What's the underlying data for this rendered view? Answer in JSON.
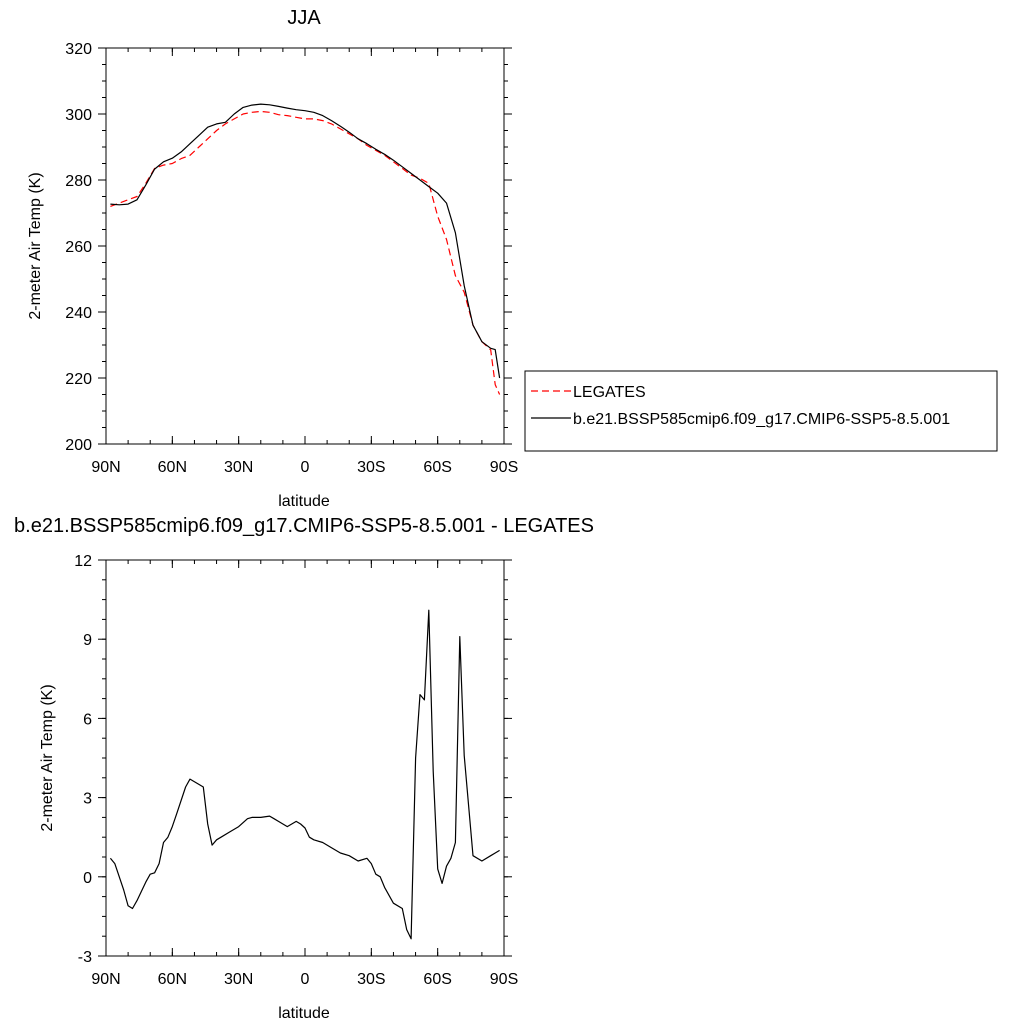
{
  "chart_data": [
    {
      "type": "line",
      "title": "JJA",
      "xlabel": "latitude",
      "ylabel": "2-meter Air Temp (K)",
      "xlim": [
        90,
        -90
      ],
      "ylim": [
        200,
        320
      ],
      "xticks": [
        90,
        60,
        30,
        0,
        -30,
        -60,
        -90
      ],
      "xtick_labels": [
        "90N",
        "60N",
        "30N",
        "0",
        "30S",
        "60S",
        "90S"
      ],
      "yticks": [
        200,
        220,
        240,
        260,
        280,
        300,
        320
      ],
      "ytick_labels": [
        "200",
        "220",
        "240",
        "260",
        "280",
        "300",
        "320"
      ],
      "legend_placement": "right",
      "series": [
        {
          "name": "LEGATES",
          "color": "#ff0000",
          "dash": "dashed",
          "x": [
            88,
            84,
            80,
            76,
            72,
            68,
            64,
            60,
            56,
            52,
            48,
            44,
            40,
            36,
            32,
            28,
            24,
            20,
            16,
            12,
            8,
            4,
            0,
            -4,
            -8,
            -12,
            -16,
            -20,
            -24,
            -28,
            -32,
            -36,
            -40,
            -44,
            -48,
            -52,
            -56,
            -60,
            -64,
            -68,
            -72,
            -76,
            -80,
            -84,
            -86,
            -88
          ],
          "y": [
            272,
            273,
            274,
            275,
            279,
            283.5,
            284.5,
            285,
            286.5,
            287.5,
            290,
            292.5,
            295,
            297,
            298.5,
            300,
            300.5,
            300.8,
            300.5,
            299.8,
            299.5,
            299,
            298.5,
            298.5,
            298,
            297,
            295.5,
            294,
            292.5,
            290.5,
            289,
            287.5,
            285.5,
            283.5,
            281.5,
            280.5,
            279,
            269,
            262,
            251,
            246,
            236,
            231,
            228.5,
            218,
            215
          ]
        },
        {
          "name": "b.e21.BSSP585cmip6.f09_g17.CMIP6-SSP5-8.5.001",
          "color": "#000000",
          "dash": "solid",
          "x": [
            88,
            84,
            80,
            76,
            72,
            68,
            64,
            60,
            56,
            52,
            48,
            44,
            40,
            36,
            32,
            28,
            24,
            20,
            16,
            12,
            8,
            4,
            0,
            -4,
            -8,
            -12,
            -16,
            -20,
            -24,
            -28,
            -32,
            -36,
            -40,
            -44,
            -48,
            -52,
            -56,
            -60,
            -64,
            -68,
            -72,
            -76,
            -80,
            -84,
            -86,
            -88
          ],
          "y": [
            272.7,
            272.5,
            272.7,
            274,
            278.5,
            283.3,
            285.5,
            286.6,
            288.5,
            291,
            293.5,
            296,
            297,
            297.5,
            300,
            302,
            302.7,
            303,
            302.8,
            302.3,
            301.8,
            301.3,
            301,
            300.5,
            299.5,
            298,
            296.3,
            294.5,
            292.5,
            291,
            289.3,
            287.8,
            286,
            284,
            282,
            280,
            278,
            276,
            273,
            264,
            248,
            236,
            231,
            229,
            228.6,
            220
          ]
        }
      ]
    },
    {
      "type": "line",
      "title": "b.e21.BSSP585cmip6.f09_g17.CMIP6-SSP5-8.5.001 - LEGATES",
      "xlabel": "latitude",
      "ylabel": "2-meter Air Temp (K)",
      "xlim": [
        90,
        -90
      ],
      "ylim": [
        -3,
        12
      ],
      "xticks": [
        90,
        60,
        30,
        0,
        -30,
        -60,
        -90
      ],
      "xtick_labels": [
        "90N",
        "60N",
        "30N",
        "0",
        "30S",
        "60S",
        "90S"
      ],
      "yticks": [
        -3,
        0,
        3,
        6,
        9,
        12
      ],
      "ytick_labels": [
        "-3",
        "0",
        "3",
        "6",
        "9",
        "12"
      ],
      "series": [
        {
          "color": "#000000",
          "dash": "solid",
          "x": [
            88,
            86,
            82,
            80,
            78,
            76,
            72,
            70,
            68,
            66,
            64,
            62,
            60,
            58,
            54,
            52,
            48,
            46,
            44,
            42,
            40,
            38,
            34,
            30,
            26,
            24,
            20,
            16,
            14,
            12,
            10,
            8,
            4,
            2,
            0,
            -2,
            -4,
            -8,
            -10,
            -12,
            -16,
            -20,
            -24,
            -28,
            -30,
            -32,
            -34,
            -36,
            -40,
            -44,
            -46,
            -48,
            -50,
            -52,
            -54,
            -56,
            -58,
            -60,
            -62,
            -64,
            -66,
            -68,
            -70,
            -72,
            -76,
            -80,
            -84,
            -86,
            -88
          ],
          "y": [
            0.7,
            0.5,
            -0.5,
            -1.1,
            -1.2,
            -0.9,
            -0.2,
            0.1,
            0.15,
            0.5,
            1.3,
            1.5,
            1.9,
            2.4,
            3.4,
            3.7,
            3.5,
            3.4,
            2.0,
            1.2,
            1.4,
            1.5,
            1.7,
            1.9,
            2.2,
            2.25,
            2.25,
            2.3,
            2.2,
            2.1,
            2.0,
            1.9,
            2.1,
            2.0,
            1.85,
            1.5,
            1.4,
            1.3,
            1.2,
            1.1,
            0.9,
            0.8,
            0.6,
            0.7,
            0.5,
            0.1,
            0.0,
            -0.4,
            -1.0,
            -1.2,
            -2.0,
            -2.35,
            4.5,
            6.9,
            6.7,
            10.1,
            4.0,
            0.3,
            -0.25,
            0.4,
            0.7,
            1.3,
            9.1,
            4.6,
            0.8,
            0.6,
            0.8,
            0.9,
            1.0
          ]
        }
      ]
    }
  ]
}
